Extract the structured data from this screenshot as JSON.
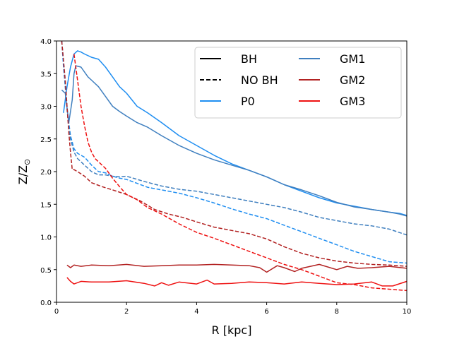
{
  "chart_data": {
    "type": "line",
    "xlabel": "R [kpc]",
    "ylabel_main": "Z/Z",
    "ylabel_sub": "⊙",
    "xlim": [
      0,
      10
    ],
    "ylim": [
      0,
      4.0
    ],
    "xticks": [
      0,
      2,
      4,
      6,
      8,
      10
    ],
    "xtick_labels": [
      "0",
      "2",
      "4",
      "6",
      "8",
      "10"
    ],
    "yticks": [
      0,
      0.5,
      1.0,
      1.5,
      2.0,
      2.5,
      3.0,
      3.5,
      4.0
    ],
    "ytick_labels": [
      "0.0",
      "0.5",
      "1.0",
      "1.5",
      "2.0",
      "2.5",
      "3.0",
      "3.5",
      "4.0"
    ],
    "grid": false,
    "legend_position": "top-right",
    "legend": [
      {
        "label": "BH",
        "color": "#000000",
        "dash": "solid"
      },
      {
        "label": "NO BH",
        "color": "#000000",
        "dash": "dashed"
      },
      {
        "label": "P0",
        "color": "#1f8ef1",
        "dash": "solid"
      },
      {
        "label": "GM1",
        "color": "#3f7fbf",
        "dash": "solid"
      },
      {
        "label": "GM2",
        "color": "#b22222",
        "dash": "solid"
      },
      {
        "label": "GM3",
        "color": "#ee1111",
        "dash": "solid"
      }
    ],
    "series": [
      {
        "name": "P0 BH",
        "color": "#1f8ef1",
        "dash": "solid",
        "x": [
          0.2,
          0.3,
          0.4,
          0.5,
          0.6,
          0.7,
          0.8,
          1.0,
          1.2,
          1.4,
          1.6,
          1.8,
          2.0,
          2.3,
          2.6,
          3.0,
          3.5,
          4.0,
          4.5,
          5.0,
          5.5,
          6.0,
          6.5,
          7.0,
          7.5,
          8.0,
          8.5,
          9.0,
          9.5,
          9.8,
          10.0
        ],
        "y": [
          2.9,
          3.3,
          3.6,
          3.8,
          3.85,
          3.83,
          3.8,
          3.75,
          3.72,
          3.6,
          3.45,
          3.3,
          3.2,
          3.0,
          2.9,
          2.75,
          2.55,
          2.4,
          2.25,
          2.12,
          2.02,
          1.92,
          1.8,
          1.7,
          1.6,
          1.52,
          1.47,
          1.42,
          1.38,
          1.36,
          1.33
        ]
      },
      {
        "name": "GM1 BH",
        "color": "#3f7fbf",
        "dash": "solid",
        "x": [
          0.15,
          0.25,
          0.35,
          0.45,
          0.5,
          0.55,
          0.7,
          0.9,
          1.0,
          1.2,
          1.4,
          1.6,
          1.8,
          2.0,
          2.3,
          2.6,
          3.0,
          3.5,
          4.0,
          4.5,
          5.0,
          5.5,
          6.0,
          6.5,
          7.0,
          7.5,
          8.0,
          8.5,
          9.0,
          9.5,
          9.8,
          10.0
        ],
        "y": [
          3.25,
          3.2,
          2.75,
          3.1,
          3.5,
          3.62,
          3.6,
          3.45,
          3.4,
          3.3,
          3.15,
          3.0,
          2.92,
          2.85,
          2.75,
          2.68,
          2.55,
          2.4,
          2.28,
          2.18,
          2.1,
          2.02,
          1.92,
          1.8,
          1.72,
          1.63,
          1.53,
          1.46,
          1.42,
          1.38,
          1.35,
          1.32
        ]
      },
      {
        "name": "P0 NO BH",
        "color": "#1f8ef1",
        "dash": "dashed",
        "x": [
          0.15,
          0.2,
          0.25,
          0.3,
          0.35,
          0.4,
          0.5,
          0.6,
          0.8,
          1.0,
          1.2,
          1.4,
          1.6,
          1.8,
          2.0,
          2.3,
          2.6,
          3.0,
          3.5,
          4.0,
          4.5,
          5.0,
          5.5,
          6.0,
          6.5,
          7.0,
          7.5,
          8.0,
          8.5,
          9.0,
          9.5,
          10.0
        ],
        "y": [
          4.0,
          3.6,
          3.3,
          3.0,
          2.75,
          2.55,
          2.35,
          2.28,
          2.22,
          2.1,
          2.0,
          1.98,
          1.93,
          1.9,
          1.88,
          1.82,
          1.76,
          1.72,
          1.67,
          1.6,
          1.52,
          1.43,
          1.35,
          1.28,
          1.18,
          1.08,
          0.98,
          0.88,
          0.78,
          0.7,
          0.62,
          0.6
        ]
      },
      {
        "name": "GM1 NO BH",
        "color": "#3f7fbf",
        "dash": "dashed",
        "x": [
          0.15,
          0.2,
          0.25,
          0.3,
          0.35,
          0.4,
          0.5,
          0.6,
          0.8,
          1.0,
          1.2,
          1.4,
          1.6,
          1.8,
          2.0,
          2.5,
          3.0,
          3.5,
          4.0,
          4.5,
          5.0,
          5.5,
          6.0,
          6.5,
          7.0,
          7.5,
          8.0,
          8.5,
          9.0,
          9.5,
          10.0
        ],
        "y": [
          4.0,
          3.7,
          3.3,
          2.95,
          2.7,
          2.5,
          2.3,
          2.2,
          2.1,
          2.0,
          1.95,
          1.95,
          1.93,
          1.92,
          1.93,
          1.85,
          1.78,
          1.73,
          1.7,
          1.65,
          1.6,
          1.55,
          1.5,
          1.45,
          1.38,
          1.3,
          1.25,
          1.2,
          1.17,
          1.12,
          1.03
        ]
      },
      {
        "name": "GM2 NO BH",
        "color": "#b22222",
        "dash": "dashed",
        "x": [
          0.15,
          0.2,
          0.25,
          0.3,
          0.35,
          0.4,
          0.45,
          0.5,
          0.6,
          0.8,
          1.0,
          1.3,
          1.6,
          2.0,
          2.4,
          2.8,
          3.2,
          3.6,
          4.0,
          4.5,
          5.0,
          5.5,
          6.0,
          6.5,
          7.0,
          7.5,
          8.0,
          8.5,
          9.0,
          9.5,
          10.0
        ],
        "y": [
          4.0,
          3.7,
          3.4,
          3.0,
          2.6,
          2.3,
          2.03,
          2.03,
          2.0,
          1.93,
          1.83,
          1.77,
          1.72,
          1.65,
          1.55,
          1.42,
          1.35,
          1.3,
          1.23,
          1.15,
          1.1,
          1.05,
          0.97,
          0.85,
          0.75,
          0.68,
          0.63,
          0.6,
          0.58,
          0.57,
          0.55
        ]
      },
      {
        "name": "GM3 NO BH",
        "color": "#ee1111",
        "dash": "dashed",
        "x": [
          0.5,
          0.6,
          0.7,
          0.8,
          0.9,
          1.0,
          1.1,
          1.2,
          1.4,
          1.6,
          1.8,
          2.0,
          2.3,
          2.6,
          3.0,
          3.5,
          4.0,
          4.5,
          5.0,
          5.5,
          6.0,
          6.5,
          7.0,
          7.5,
          8.0,
          8.5,
          9.0,
          9.5,
          10.0
        ],
        "y": [
          3.8,
          3.4,
          3.0,
          2.7,
          2.45,
          2.3,
          2.2,
          2.15,
          2.05,
          1.9,
          1.77,
          1.65,
          1.57,
          1.45,
          1.35,
          1.2,
          1.07,
          0.98,
          0.88,
          0.78,
          0.68,
          0.58,
          0.5,
          0.4,
          0.3,
          0.27,
          0.22,
          0.2,
          0.18
        ]
      },
      {
        "name": "GM2 BH",
        "color": "#b22222",
        "dash": "solid",
        "x": [
          0.3,
          0.4,
          0.5,
          0.7,
          1.0,
          1.5,
          2.0,
          2.5,
          3.0,
          3.5,
          4.0,
          4.5,
          5.0,
          5.5,
          5.8,
          6.0,
          6.3,
          6.5,
          6.8,
          7.0,
          7.5,
          8.0,
          8.3,
          8.6,
          9.0,
          9.5,
          10.0
        ],
        "y": [
          0.57,
          0.53,
          0.57,
          0.55,
          0.57,
          0.56,
          0.58,
          0.55,
          0.56,
          0.57,
          0.57,
          0.58,
          0.57,
          0.56,
          0.53,
          0.46,
          0.56,
          0.53,
          0.47,
          0.52,
          0.58,
          0.5,
          0.55,
          0.52,
          0.53,
          0.55,
          0.52
        ]
      },
      {
        "name": "GM3 BH",
        "color": "#ee1111",
        "dash": "solid",
        "x": [
          0.3,
          0.4,
          0.5,
          0.7,
          1.0,
          1.5,
          2.0,
          2.5,
          2.8,
          3.0,
          3.2,
          3.5,
          4.0,
          4.3,
          4.5,
          5.0,
          5.5,
          6.0,
          6.5,
          7.0,
          7.5,
          8.0,
          8.5,
          9.0,
          9.3,
          9.6,
          10.0
        ],
        "y": [
          0.38,
          0.32,
          0.28,
          0.32,
          0.31,
          0.31,
          0.33,
          0.29,
          0.25,
          0.3,
          0.26,
          0.31,
          0.28,
          0.34,
          0.28,
          0.29,
          0.31,
          0.3,
          0.28,
          0.31,
          0.29,
          0.27,
          0.28,
          0.31,
          0.25,
          0.25,
          0.32
        ]
      }
    ]
  }
}
